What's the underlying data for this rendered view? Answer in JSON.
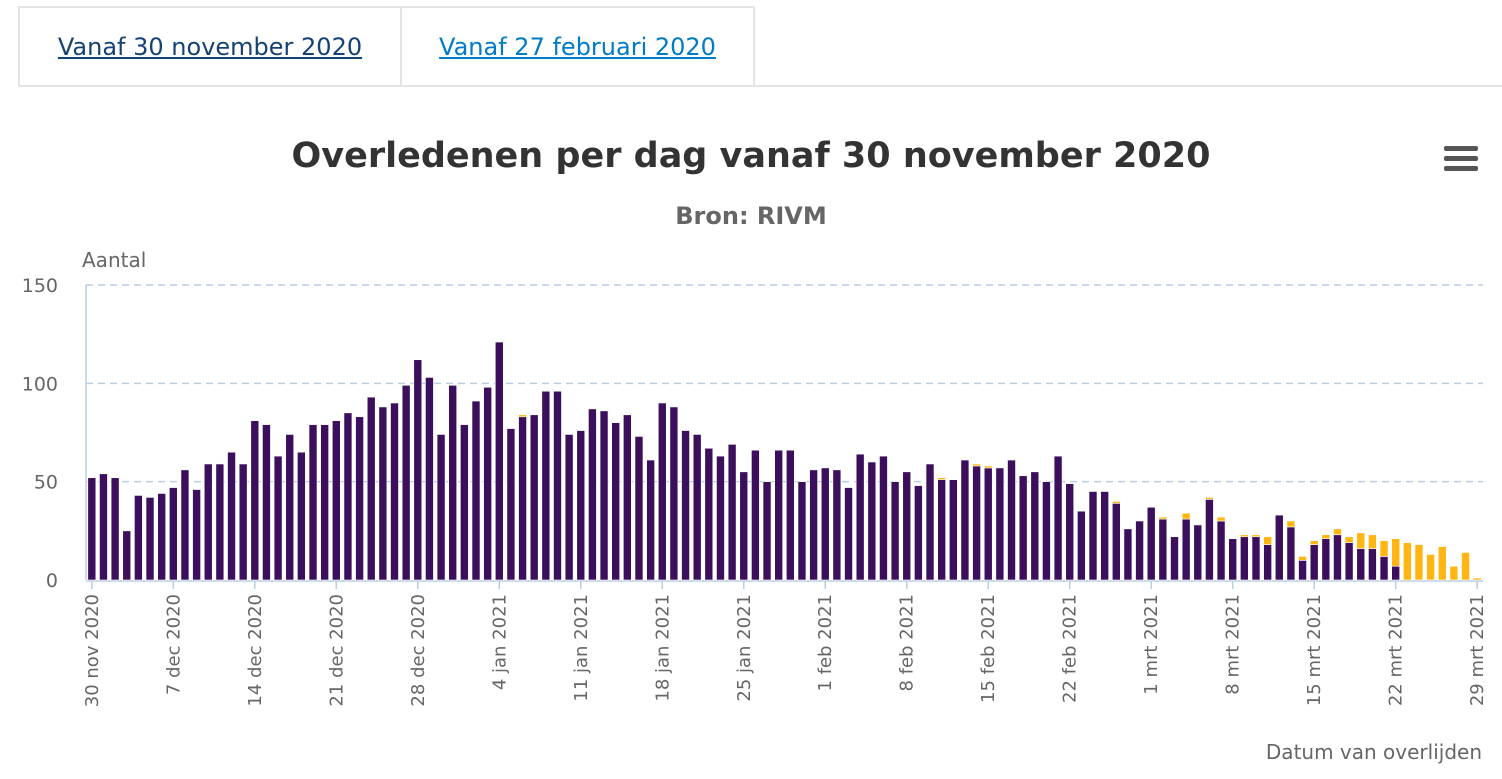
{
  "tabs": [
    {
      "label": "Vanaf 30 november 2020"
    },
    {
      "label": "Vanaf 27 februari 2020"
    }
  ],
  "menu_icon": "hamburger-menu-icon",
  "chart_data": {
    "type": "bar",
    "stacked": true,
    "title": "Overledenen per dag vanaf 30 november 2020",
    "subtitle": "Bron: RIVM",
    "ylabel": "Aantal",
    "xlabel": "Datum van overlijden",
    "ylim": [
      0,
      150
    ],
    "yticks": [
      0,
      50,
      100,
      150
    ],
    "grid": true,
    "start_date": "2020-11-30",
    "xtick_labels": [
      "30 nov 2020",
      "7 dec 2020",
      "14 dec 2020",
      "21 dec 2020",
      "28 dec 2020",
      "4 jan 2021",
      "11 jan 2021",
      "18 jan 2021",
      "25 jan 2021",
      "1 feb 2021",
      "8 feb 2021",
      "15 feb 2021",
      "22 feb 2021",
      "1 mrt 2021",
      "8 mrt 2021",
      "15 mrt 2021",
      "22 mrt 2021",
      "29 mrt 2021"
    ],
    "xtick_every": 7,
    "series": [
      {
        "color": "#3b0f5b",
        "values": [
          52,
          54,
          52,
          25,
          43,
          42,
          44,
          47,
          56,
          46,
          59,
          59,
          65,
          59,
          81,
          79,
          63,
          74,
          65,
          79,
          79,
          81,
          85,
          83,
          93,
          88,
          90,
          99,
          112,
          103,
          74,
          99,
          79,
          91,
          98,
          121,
          77,
          83,
          84,
          96,
          96,
          74,
          76,
          87,
          86,
          80,
          84,
          73,
          61,
          90,
          88,
          76,
          74,
          67,
          63,
          69,
          55,
          66,
          50,
          66,
          66,
          50,
          56,
          57,
          56,
          47,
          64,
          60,
          63,
          50,
          55,
          48,
          59,
          51,
          51,
          61,
          58,
          57,
          57,
          61,
          53,
          55,
          50,
          63,
          49,
          35,
          45,
          45,
          39,
          26,
          30,
          37,
          31,
          22,
          31,
          28,
          41,
          30,
          21,
          22,
          22,
          18,
          33,
          27,
          10,
          18,
          21,
          23,
          19,
          16,
          16,
          12,
          7,
          0,
          0,
          0,
          0,
          0,
          0,
          0
        ]
      },
      {
        "color": "#ffb612",
        "values": [
          0,
          0,
          0,
          0,
          0,
          0,
          0,
          0,
          0,
          0,
          0,
          0,
          0,
          0,
          0,
          0,
          0,
          0,
          0,
          0,
          0,
          0,
          0,
          0,
          0,
          0,
          0,
          0,
          0,
          0,
          0,
          0,
          0,
          0,
          0,
          0,
          0,
          1,
          0,
          0,
          0,
          0,
          0,
          0,
          0,
          0,
          0,
          0,
          0,
          0,
          0,
          0,
          0,
          0,
          0,
          0,
          0,
          0,
          0,
          0,
          0,
          0,
          0,
          0,
          0,
          0,
          0,
          0,
          0,
          0,
          0,
          0,
          0,
          1,
          0,
          0,
          1,
          1,
          0,
          0,
          0,
          0,
          0,
          0,
          0,
          0,
          0,
          0,
          1,
          0,
          0,
          0,
          1,
          0,
          3,
          0,
          1,
          2,
          0,
          1,
          1,
          4,
          0,
          3,
          2,
          2,
          2,
          3,
          3,
          8,
          7,
          8,
          14,
          19,
          18,
          13,
          17,
          7,
          14,
          1
        ]
      }
    ]
  }
}
